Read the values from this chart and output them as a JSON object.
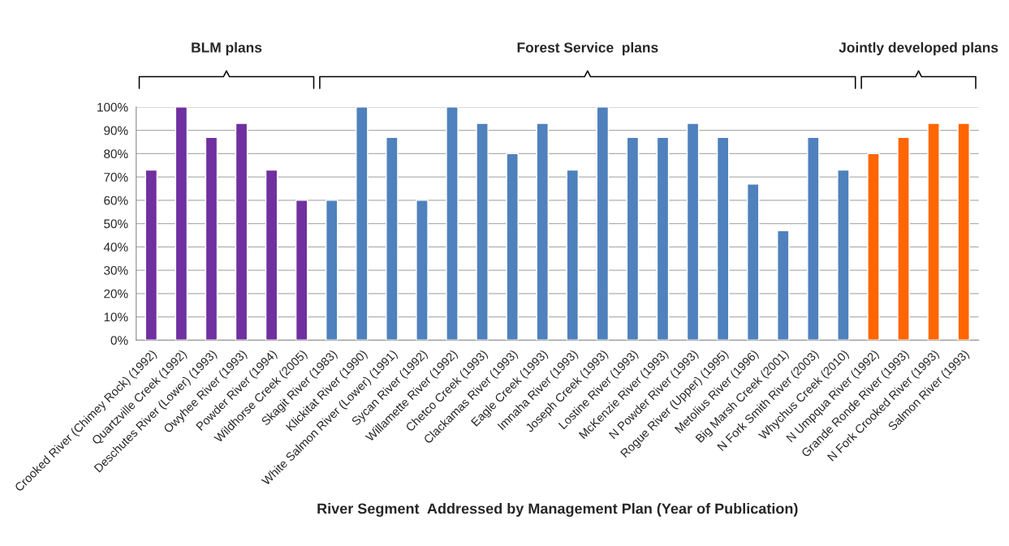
{
  "chart_data": {
    "type": "bar",
    "categories": [
      "Crooked River (Chimey Rock) (1992)",
      "Quartzville Creek (1992)",
      "Deschutes River (Lower) (1993)",
      "Owyhee River (1993)",
      "Powder River (1994)",
      "Wildhorse Creek (2005)",
      "Skagit River (1983)",
      "Klickitat River (1990)",
      "White Salmon River (Lower) (1991)",
      "Sycan River (1992)",
      "Willamette River (1992)",
      "Chetco Creek (1993)",
      "Clackamas River (1993)",
      "Eagle Creek (1993)",
      "Imnaha River (1993)",
      "Joseph Creek (1993)",
      "Lostine River (1993)",
      "McKenzie River (1993)",
      "N Powder River (1993)",
      "Rogue River (Upper) (1995)",
      "Metolius River (1996)",
      "Big Marsh Creek (2001)",
      "N Fork Smith River (2003)",
      "Whychus Creek (2010)",
      "N Umpqua River (1992)",
      "Grande Ronde River (1993)",
      "N Fork Crooked River (1993)",
      "Salmon River (1993)"
    ],
    "values": [
      73,
      100,
      87,
      93,
      73,
      60,
      60,
      100,
      87,
      60,
      100,
      93,
      80,
      93,
      73,
      100,
      87,
      87,
      93,
      87,
      67,
      47,
      87,
      73,
      80,
      87,
      93,
      93
    ],
    "colors": [
      "#7030a0",
      "#7030a0",
      "#7030a0",
      "#7030a0",
      "#7030a0",
      "#7030a0",
      "#4f81bd",
      "#4f81bd",
      "#4f81bd",
      "#4f81bd",
      "#4f81bd",
      "#4f81bd",
      "#4f81bd",
      "#4f81bd",
      "#4f81bd",
      "#4f81bd",
      "#4f81bd",
      "#4f81bd",
      "#4f81bd",
      "#4f81bd",
      "#4f81bd",
      "#4f81bd",
      "#4f81bd",
      "#4f81bd",
      "#ff6600",
      "#ff6600",
      "#ff6600",
      "#ff6600"
    ],
    "xlabel": "River Segment  Addressed by Management Plan (Year of Publication)",
    "ylim": [
      0,
      100
    ],
    "yticks": [
      {
        "value": 0,
        "label": "0%"
      },
      {
        "value": 10,
        "label": "10%"
      },
      {
        "value": 20,
        "label": "20%"
      },
      {
        "value": 30,
        "label": "30%"
      },
      {
        "value": 40,
        "label": "40%"
      },
      {
        "value": 50,
        "label": "50%"
      },
      {
        "value": 60,
        "label": "60%"
      },
      {
        "value": 70,
        "label": "70%"
      },
      {
        "value": 80,
        "label": "80%"
      },
      {
        "value": 90,
        "label": "90%"
      },
      {
        "value": 100,
        "label": "100%"
      }
    ],
    "grid": "y",
    "annotations": [
      "BLM plans",
      "Forest Service  plans",
      "Jointly developed plans"
    ]
  }
}
